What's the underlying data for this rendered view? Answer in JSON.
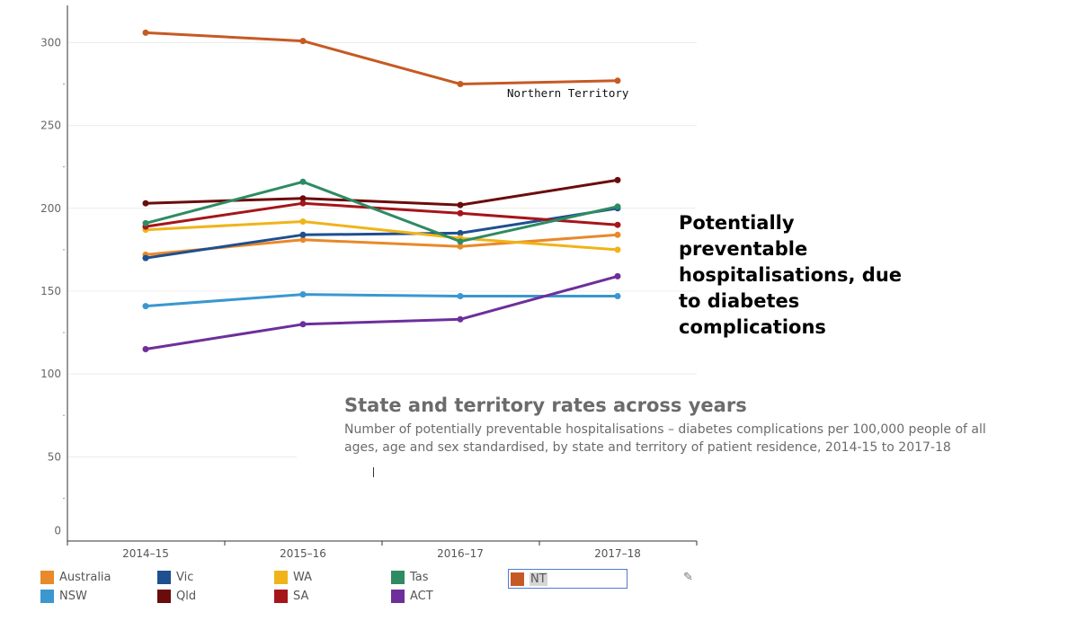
{
  "chart_data": {
    "type": "line",
    "title": "Potentially preventable hospitalisations, due to diabetes complications",
    "subtitle": "State and territory rates across years",
    "description": "Number of potentially preventable hospitalisations – diabetes complications per 100,000 people of all ages, age and sex standardised, by state and territory of patient residence, 2014-15 to 2017-18",
    "categories": [
      "2014–15",
      "2015–16",
      "2016–17",
      "2017–18"
    ],
    "y_ticks": [
      0,
      50,
      100,
      150,
      200,
      250,
      300
    ],
    "ylim": [
      0,
      320
    ],
    "grid": true,
    "legend_position": "bottom",
    "annotation": "Northern Territory",
    "series": [
      {
        "name": "Australia",
        "color": "#e8892a",
        "values": [
          172,
          181,
          177,
          184
        ]
      },
      {
        "name": "NSW",
        "color": "#3a97d0",
        "values": [
          141,
          148,
          147,
          147
        ]
      },
      {
        "name": "Vic",
        "color": "#1e4f91",
        "values": [
          170,
          184,
          185,
          200
        ]
      },
      {
        "name": "Qld",
        "color": "#6b0c0c",
        "values": [
          203,
          206,
          202,
          217
        ]
      },
      {
        "name": "WA",
        "color": "#f0b41a",
        "values": [
          187,
          192,
          182,
          175
        ]
      },
      {
        "name": "SA",
        "color": "#a5151a",
        "values": [
          189,
          203,
          197,
          190
        ]
      },
      {
        "name": "Tas",
        "color": "#2e8b62",
        "values": [
          191,
          216,
          180,
          201
        ]
      },
      {
        "name": "ACT",
        "color": "#6d2f9a",
        "values": [
          115,
          130,
          133,
          159
        ]
      },
      {
        "name": "NT",
        "color": "#c65a24",
        "values": [
          306,
          301,
          275,
          277
        ]
      }
    ]
  },
  "legend": {
    "highlighted": "NT",
    "rows": [
      [
        "Australia",
        "Vic",
        "WA",
        "Tas",
        "NT"
      ],
      [
        "NSW",
        "Qld",
        "SA",
        "ACT"
      ]
    ]
  },
  "icons": {
    "edit": "pencil-icon"
  },
  "cursor": "I"
}
